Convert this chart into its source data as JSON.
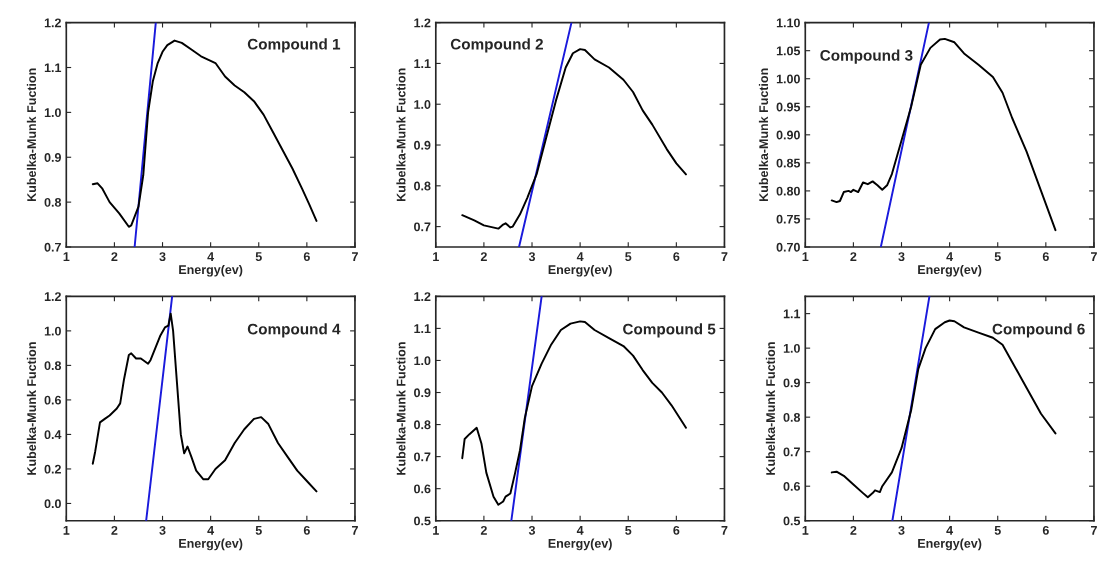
{
  "chart_data": [
    {
      "type": "line",
      "xlabel": "Energy(ev)",
      "ylabel": "Kubelka-Munk Fuction",
      "annotations": [
        "Compound 1"
      ],
      "xlim": [
        1,
        7
      ],
      "xticks": [
        1,
        2,
        3,
        4,
        5,
        6,
        7
      ],
      "ylim": [
        0.7,
        1.2
      ],
      "yticks": [
        0.7,
        0.8,
        0.9,
        {
          "value": 1,
          "label": "1.0"
        },
        1.1,
        1.2
      ],
      "series": [
        {
          "color": "#000000",
          "x": [
            1.55,
            1.65,
            1.75,
            1.9,
            2.1,
            2.3,
            2.35,
            2.5,
            2.6,
            2.7,
            2.8,
            2.9,
            3.0,
            3.1,
            3.25,
            3.4,
            3.6,
            3.8,
            4.0,
            4.1,
            4.3,
            4.5,
            4.7,
            4.9,
            5.1,
            5.3,
            5.5,
            5.7,
            5.9,
            6.05,
            6.2
          ],
          "values": [
            0.84,
            0.842,
            0.83,
            0.8,
            0.775,
            0.745,
            0.748,
            0.79,
            0.86,
            1.0,
            1.07,
            1.11,
            1.135,
            1.15,
            1.16,
            1.155,
            1.14,
            1.125,
            1.115,
            1.11,
            1.08,
            1.06,
            1.045,
            1.025,
            0.995,
            0.955,
            0.915,
            0.875,
            0.83,
            0.795,
            0.758
          ]
        },
        {
          "color": "#1a1adc",
          "x": [
            2.42,
            2.86
          ],
          "values": [
            0.7,
            1.2
          ]
        }
      ]
    },
    {
      "type": "line",
      "xlabel": "Energy(ev)",
      "ylabel": "Kubelka-Munk Fuction",
      "annotations": [
        "Compound 2"
      ],
      "xlim": [
        1,
        7
      ],
      "xticks": [
        1,
        2,
        3,
        4,
        5,
        6,
        7
      ],
      "ylim": [
        0.65,
        1.2
      ],
      "yticks": [
        0.7,
        0.8,
        0.9,
        {
          "value": 1,
          "label": "1.0"
        },
        1.1,
        1.2
      ],
      "series": [
        {
          "color": "#000000",
          "x": [
            1.55,
            1.8,
            2.0,
            2.3,
            2.4,
            2.45,
            2.55,
            2.6,
            2.75,
            2.9,
            3.1,
            3.3,
            3.5,
            3.7,
            3.85,
            4.0,
            4.1,
            4.3,
            4.6,
            4.9,
            5.1,
            5.3,
            5.5,
            5.8,
            6.0,
            6.2
          ],
          "values": [
            0.728,
            0.715,
            0.703,
            0.695,
            0.705,
            0.708,
            0.698,
            0.7,
            0.73,
            0.77,
            0.83,
            0.92,
            1.01,
            1.09,
            1.125,
            1.135,
            1.133,
            1.11,
            1.09,
            1.06,
            1.03,
            0.985,
            0.95,
            0.89,
            0.855,
            0.828
          ]
        },
        {
          "color": "#1a1adc",
          "x": [
            2.73,
            3.82
          ],
          "values": [
            0.65,
            1.2
          ]
        }
      ]
    },
    {
      "type": "line",
      "xlabel": "Energy(ev)",
      "ylabel": "Kubelka-Munk Fuction",
      "annotations": [
        "Compound 3"
      ],
      "xlim": [
        1,
        7
      ],
      "xticks": [
        1,
        2,
        3,
        4,
        5,
        6,
        7
      ],
      "ylim": [
        0.7,
        1.1
      ],
      "yticks": [
        {
          "value": 0.7,
          "label": "0.70"
        },
        {
          "value": 0.75,
          "label": "0.75"
        },
        {
          "value": 0.8,
          "label": "0.80"
        },
        {
          "value": 0.85,
          "label": "0.85"
        },
        {
          "value": 0.9,
          "label": "0.90"
        },
        {
          "value": 0.95,
          "label": "0.95"
        },
        {
          "value": 1.0,
          "label": "1.00"
        },
        {
          "value": 1.05,
          "label": "1.05"
        },
        {
          "value": 1.1,
          "label": "1.10"
        }
      ],
      "series": [
        {
          "color": "#000000",
          "x": [
            1.55,
            1.65,
            1.72,
            1.8,
            1.9,
            1.95,
            2.0,
            2.1,
            2.2,
            2.3,
            2.4,
            2.5,
            2.6,
            2.7,
            2.8,
            2.9,
            3.0,
            3.2,
            3.4,
            3.6,
            3.8,
            3.9,
            4.1,
            4.3,
            4.6,
            4.9,
            5.1,
            5.3,
            5.6,
            5.9,
            6.2
          ],
          "values": [
            0.783,
            0.78,
            0.782,
            0.798,
            0.8,
            0.798,
            0.802,
            0.798,
            0.815,
            0.812,
            0.817,
            0.81,
            0.802,
            0.81,
            0.83,
            0.86,
            0.89,
            0.95,
            1.025,
            1.055,
            1.07,
            1.071,
            1.065,
            1.045,
            1.025,
            1.003,
            0.975,
            0.93,
            0.87,
            0.8,
            0.73
          ]
        },
        {
          "color": "#1a1adc",
          "x": [
            2.57,
            3.57
          ],
          "values": [
            0.7,
            1.1
          ]
        }
      ]
    },
    {
      "type": "line",
      "xlabel": "Energy(ev)",
      "ylabel": "Kubelka-Munk Fuction",
      "annotations": [
        "Compound 4"
      ],
      "xlim": [
        1,
        7
      ],
      "xticks": [
        1,
        2,
        3,
        4,
        5,
        6,
        7
      ],
      "ylim": [
        -0.1,
        1.2
      ],
      "yticks": [
        {
          "value": 0,
          "label": "0.0"
        },
        0.2,
        0.4,
        0.6,
        0.8,
        {
          "value": 1,
          "label": "1.0"
        },
        1.2
      ],
      "series": [
        {
          "color": "#000000",
          "x": [
            1.55,
            1.6,
            1.7,
            1.8,
            1.9,
            2.05,
            2.12,
            2.2,
            2.3,
            2.35,
            2.45,
            2.55,
            2.6,
            2.7,
            2.75,
            2.85,
            2.95,
            3.05,
            3.12,
            3.17,
            3.22,
            3.3,
            3.38,
            3.45,
            3.52,
            3.6,
            3.7,
            3.85,
            3.95,
            4.1,
            4.3,
            4.5,
            4.7,
            4.9,
            5.05,
            5.2,
            5.4,
            5.6,
            5.8,
            6.0,
            6.2
          ],
          "values": [
            0.23,
            0.3,
            0.47,
            0.49,
            0.51,
            0.55,
            0.58,
            0.72,
            0.86,
            0.87,
            0.84,
            0.84,
            0.83,
            0.81,
            0.83,
            0.9,
            0.97,
            1.02,
            1.03,
            1.1,
            1.0,
            0.7,
            0.4,
            0.29,
            0.33,
            0.27,
            0.19,
            0.14,
            0.14,
            0.2,
            0.25,
            0.35,
            0.43,
            0.49,
            0.5,
            0.46,
            0.35,
            0.27,
            0.19,
            0.13,
            0.07
          ]
        },
        {
          "color": "#1a1adc",
          "x": [
            2.66,
            3.2
          ],
          "values": [
            -0.1,
            1.2
          ]
        }
      ]
    },
    {
      "type": "line",
      "xlabel": "Energy(ev)",
      "ylabel": "Kubelka-Munk Fuction",
      "annotations": [
        "Compound 5"
      ],
      "xlim": [
        1,
        7
      ],
      "xticks": [
        1,
        2,
        3,
        4,
        5,
        6,
        7
      ],
      "ylim": [
        0.5,
        1.2
      ],
      "yticks": [
        0.5,
        0.6,
        0.7,
        0.8,
        0.9,
        {
          "value": 1,
          "label": "1.0"
        },
        1.1,
        1.2
      ],
      "series": [
        {
          "color": "#000000",
          "x": [
            1.55,
            1.6,
            1.7,
            1.85,
            1.95,
            2.05,
            2.2,
            2.3,
            2.4,
            2.45,
            2.55,
            2.65,
            2.75,
            2.85,
            3.0,
            3.2,
            3.4,
            3.6,
            3.8,
            4.0,
            4.1,
            4.3,
            4.6,
            4.9,
            5.1,
            5.3,
            5.5,
            5.7,
            5.9,
            6.05,
            6.2
          ],
          "values": [
            0.695,
            0.755,
            0.77,
            0.79,
            0.74,
            0.65,
            0.575,
            0.55,
            0.56,
            0.575,
            0.585,
            0.65,
            0.72,
            0.82,
            0.92,
            0.99,
            1.05,
            1.095,
            1.115,
            1.122,
            1.12,
            1.095,
            1.07,
            1.045,
            1.015,
            0.97,
            0.93,
            0.9,
            0.86,
            0.825,
            0.79
          ]
        },
        {
          "color": "#1a1adc",
          "x": [
            2.57,
            3.2
          ],
          "values": [
            0.5,
            1.2
          ]
        }
      ]
    },
    {
      "type": "line",
      "xlabel": "Energy(ev)",
      "ylabel": "Kubelka-Munk Fuction",
      "annotations": [
        "Compound 6"
      ],
      "xlim": [
        1,
        7
      ],
      "xticks": [
        1,
        2,
        3,
        4,
        5,
        6,
        7
      ],
      "ylim": [
        0.5,
        1.15
      ],
      "yticks": [
        0.5,
        0.6,
        0.7,
        0.8,
        0.9,
        {
          "value": 1,
          "label": "1.0"
        },
        1.1
      ],
      "series": [
        {
          "color": "#000000",
          "x": [
            1.55,
            1.65,
            1.8,
            2.0,
            2.2,
            2.3,
            2.4,
            2.45,
            2.55,
            2.6,
            2.8,
            3.0,
            3.2,
            3.35,
            3.5,
            3.7,
            3.9,
            4.0,
            4.1,
            4.3,
            4.6,
            4.9,
            5.1,
            5.3,
            5.5,
            5.7,
            5.9,
            6.2
          ],
          "values": [
            0.64,
            0.642,
            0.63,
            0.605,
            0.58,
            0.568,
            0.58,
            0.588,
            0.583,
            0.6,
            0.64,
            0.71,
            0.82,
            0.94,
            1.0,
            1.055,
            1.075,
            1.08,
            1.078,
            1.06,
            1.045,
            1.03,
            1.01,
            0.96,
            0.91,
            0.86,
            0.81,
            0.753
          ]
        },
        {
          "color": "#1a1adc",
          "x": [
            2.81,
            3.58
          ],
          "values": [
            0.5,
            1.15
          ]
        }
      ]
    }
  ]
}
